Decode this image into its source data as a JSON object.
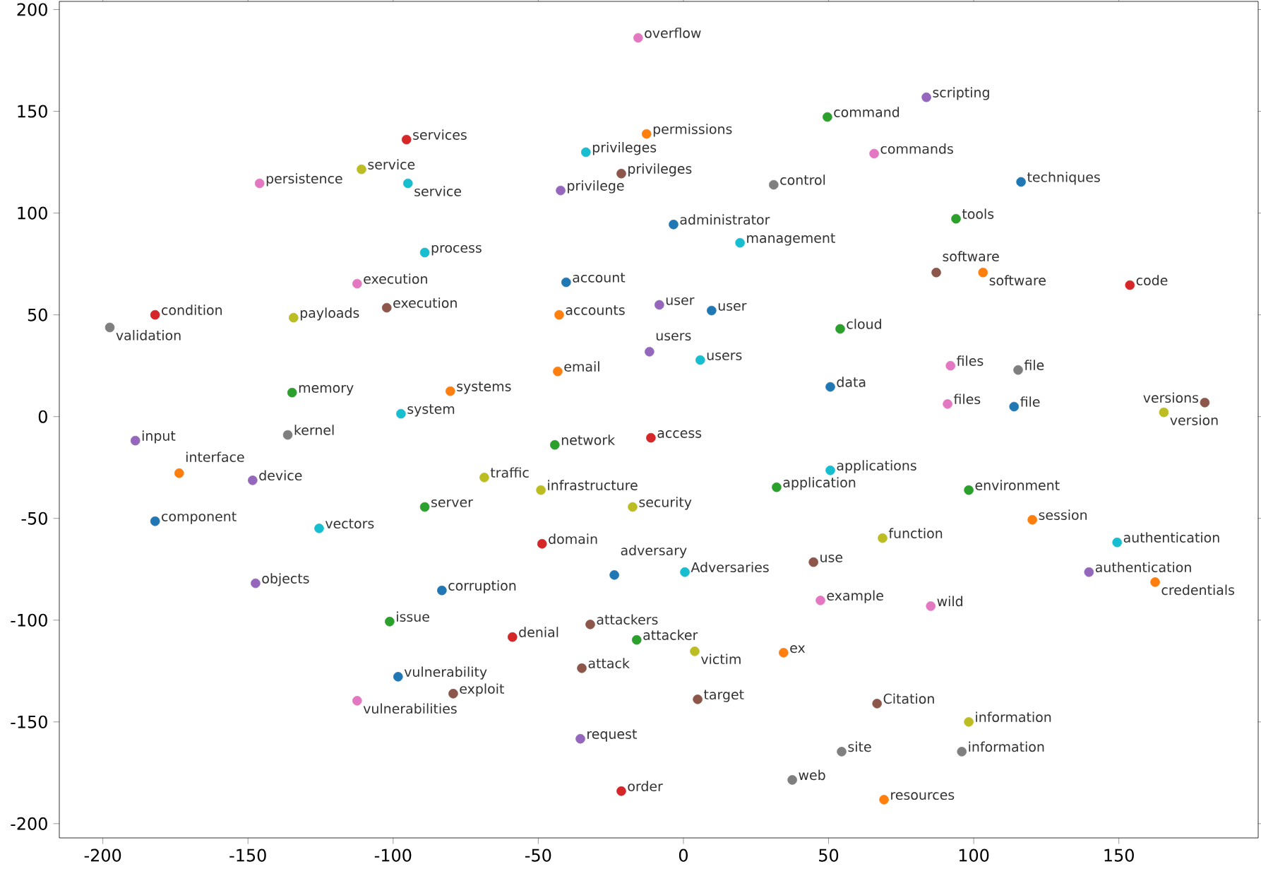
{
  "chart_data": {
    "type": "scatter",
    "marker": "circle",
    "grid": false,
    "xlim": [
      -215,
      198
    ],
    "ylim": [
      -207,
      204
    ],
    "xticks": [
      -200,
      -150,
      -100,
      -50,
      0,
      50,
      100,
      150
    ],
    "yticks": [
      -200,
      -150,
      -100,
      -50,
      0,
      50,
      100,
      150,
      200
    ],
    "x": [
      -15.6,
      49.6,
      83.7,
      -12.7,
      -95.4,
      -33.6,
      -21.4,
      65.7,
      -110.9,
      -146,
      -94.9,
      -42.3,
      31.1,
      116.3,
      -3.4,
      93.9,
      19.5,
      -89.1,
      87.1,
      103.2,
      -40.4,
      -112.4,
      153.8,
      -102.2,
      -8.3,
      9.7,
      -182.0,
      -42.8,
      -134.3,
      -197.6,
      54.0,
      -11.7,
      5.8,
      92.0,
      115.3,
      -43.3,
      -134.8,
      -80.3,
      50.6,
      91.0,
      113.9,
      179.6,
      165.5,
      -97.3,
      -136.3,
      -188.8,
      -11.2,
      -44.3,
      -173.7,
      50.6,
      -148.4,
      -68.6,
      32.1,
      -49.1,
      98.3,
      -89.1,
      -17.5,
      -182.0,
      120.2,
      -125.5,
      -48.7,
      68.6,
      149.4,
      44.8,
      -23.8,
      0.5,
      139.7,
      162.5,
      -147.4,
      -83.2,
      47.2,
      85.2,
      -101.2,
      -32.1,
      -58.9,
      -16.1,
      3.9,
      34.5,
      -35.0,
      -98.3,
      -79.3,
      -112.4,
      4.9,
      66.7,
      98.3,
      -35.5,
      54.5,
      95.9,
      37.5,
      -21.4,
      69.1
    ],
    "values": [
      186.1,
      147.2,
      156.9,
      138.9,
      136.1,
      129.9,
      119.4,
      129.2,
      121.5,
      114.6,
      114.6,
      111.1,
      113.9,
      115.3,
      94.4,
      97.2,
      85.4,
      80.6,
      70.8,
      70.8,
      66.0,
      65.3,
      64.6,
      53.5,
      54.9,
      52.1,
      50.0,
      50.0,
      48.6,
      43.8,
      43.1,
      31.9,
      27.8,
      25.0,
      22.9,
      22.2,
      11.8,
      12.5,
      14.6,
      6.2,
      4.9,
      6.9,
      2.1,
      1.4,
      -9.0,
      -11.8,
      -10.4,
      -13.9,
      -27.8,
      -26.4,
      -31.3,
      -29.9,
      -34.7,
      -36.1,
      -36.1,
      -44.4,
      -44.4,
      -51.4,
      -50.7,
      -54.9,
      -62.5,
      -59.7,
      -61.8,
      -71.5,
      -77.8,
      -76.4,
      -76.4,
      -81.3,
      -81.9,
      -85.4,
      -90.3,
      -93.1,
      -100.7,
      -102.1,
      -108.3,
      -109.7,
      -115.3,
      -116.0,
      -123.6,
      -127.8,
      -136.1,
      -139.6,
      -138.9,
      -141.0,
      -150.0,
      -158.3,
      -164.6,
      -164.6,
      -178.5,
      -184.0,
      -188.2
    ],
    "colors": [
      "#e377c2",
      "#2ca02c",
      "#9467bd",
      "#ff7f0e",
      "#d62728",
      "#17becf",
      "#8c564b",
      "#e377c2",
      "#bcbd22",
      "#e377c2",
      "#17becf",
      "#9467bd",
      "#7f7f7f",
      "#1f77b4",
      "#1f77b4",
      "#2ca02c",
      "#17becf",
      "#17becf",
      "#8c564b",
      "#ff7f0e",
      "#1f77b4",
      "#e377c2",
      "#d62728",
      "#8c564b",
      "#9467bd",
      "#1f77b4",
      "#d62728",
      "#ff7f0e",
      "#bcbd22",
      "#7f7f7f",
      "#2ca02c",
      "#9467bd",
      "#17becf",
      "#e377c2",
      "#7f7f7f",
      "#ff7f0e",
      "#2ca02c",
      "#ff7f0e",
      "#1f77b4",
      "#e377c2",
      "#1f77b4",
      "#8c564b",
      "#bcbd22",
      "#17becf",
      "#7f7f7f",
      "#9467bd",
      "#d62728",
      "#2ca02c",
      "#ff7f0e",
      "#17becf",
      "#9467bd",
      "#bcbd22",
      "#2ca02c",
      "#bcbd22",
      "#2ca02c",
      "#2ca02c",
      "#bcbd22",
      "#1f77b4",
      "#ff7f0e",
      "#17becf",
      "#d62728",
      "#bcbd22",
      "#17becf",
      "#8c564b",
      "#1f77b4",
      "#17becf",
      "#9467bd",
      "#ff7f0e",
      "#9467bd",
      "#1f77b4",
      "#e377c2",
      "#e377c2",
      "#2ca02c",
      "#8c564b",
      "#d62728",
      "#2ca02c",
      "#bcbd22",
      "#ff7f0e",
      "#8c564b",
      "#1f77b4",
      "#8c564b",
      "#e377c2",
      "#8c564b",
      "#8c564b",
      "#bcbd22",
      "#9467bd",
      "#7f7f7f",
      "#7f7f7f",
      "#7f7f7f",
      "#d62728",
      "#ff7f0e"
    ],
    "annotations": [
      {
        "text": "overflow",
        "x": -15.6,
        "y": 186.1
      },
      {
        "text": "command",
        "x": 49.6,
        "y": 147.2
      },
      {
        "text": "scripting",
        "x": 83.7,
        "y": 156.9
      },
      {
        "text": "permissions",
        "x": -12.7,
        "y": 138.9
      },
      {
        "text": "services",
        "x": -95.4,
        "y": 136.1
      },
      {
        "text": "privileges",
        "x": -33.6,
        "y": 129.9
      },
      {
        "text": "privileges",
        "x": -21.4,
        "y": 119.4
      },
      {
        "text": "commands",
        "x": 65.7,
        "y": 129.2
      },
      {
        "text": "service",
        "x": -110.9,
        "y": 121.5
      },
      {
        "text": "persistence",
        "x": -146,
        "y": 114.6
      },
      {
        "text": "service",
        "x": -94.9,
        "y": 114.6
      },
      {
        "text": "privilege",
        "x": -42.3,
        "y": 111.1
      },
      {
        "text": "control",
        "x": 31.1,
        "y": 113.9
      },
      {
        "text": "techniques",
        "x": 116.3,
        "y": 115.3
      },
      {
        "text": "administrator",
        "x": -3.4,
        "y": 94.4
      },
      {
        "text": "tools",
        "x": 93.9,
        "y": 97.2
      },
      {
        "text": "management",
        "x": 19.5,
        "y": 85.4
      },
      {
        "text": "process",
        "x": -89.1,
        "y": 80.6
      },
      {
        "text": "software",
        "x": 87.1,
        "y": 70.8
      },
      {
        "text": "software",
        "x": 103.2,
        "y": 70.8
      },
      {
        "text": "account",
        "x": -40.4,
        "y": 66.0
      },
      {
        "text": "execution",
        "x": -112.4,
        "y": 65.3
      },
      {
        "text": "code",
        "x": 153.8,
        "y": 64.6
      },
      {
        "text": "execution",
        "x": -102.2,
        "y": 53.5
      },
      {
        "text": "user",
        "x": -8.3,
        "y": 54.9
      },
      {
        "text": "user",
        "x": 9.7,
        "y": 52.1
      },
      {
        "text": "condition",
        "x": -182.0,
        "y": 50.0
      },
      {
        "text": "accounts",
        "x": -42.8,
        "y": 50.0
      },
      {
        "text": "payloads",
        "x": -134.3,
        "y": 48.6
      },
      {
        "text": "validation",
        "x": -197.6,
        "y": 43.8
      },
      {
        "text": "cloud",
        "x": 54.0,
        "y": 43.1
      },
      {
        "text": "users",
        "x": -11.7,
        "y": 31.9
      },
      {
        "text": "users",
        "x": 5.8,
        "y": 27.8
      },
      {
        "text": "files",
        "x": 92.0,
        "y": 25.0
      },
      {
        "text": "file",
        "x": 115.3,
        "y": 22.9
      },
      {
        "text": "email",
        "x": -43.3,
        "y": 22.2
      },
      {
        "text": "memory",
        "x": -134.8,
        "y": 11.8
      },
      {
        "text": "systems",
        "x": -80.3,
        "y": 12.5
      },
      {
        "text": "data",
        "x": 50.6,
        "y": 14.6
      },
      {
        "text": "files",
        "x": 91.0,
        "y": 6.2
      },
      {
        "text": "file",
        "x": 113.9,
        "y": 4.9
      },
      {
        "text": "versions",
        "x": 179.6,
        "y": 6.9
      },
      {
        "text": "version",
        "x": 165.5,
        "y": 2.1
      },
      {
        "text": "system",
        "x": -97.3,
        "y": 1.4
      },
      {
        "text": "kernel",
        "x": -136.3,
        "y": -9.0
      },
      {
        "text": "input",
        "x": -188.8,
        "y": -11.8
      },
      {
        "text": "access",
        "x": -11.2,
        "y": -10.4
      },
      {
        "text": "network",
        "x": -44.3,
        "y": -13.9
      },
      {
        "text": "interface",
        "x": -173.7,
        "y": -27.8
      },
      {
        "text": "applications",
        "x": 50.6,
        "y": -26.4
      },
      {
        "text": "device",
        "x": -148.4,
        "y": -31.3
      },
      {
        "text": "traffic",
        "x": -68.6,
        "y": -29.9
      },
      {
        "text": "application",
        "x": 32.1,
        "y": -34.7
      },
      {
        "text": "infrastructure",
        "x": -49.1,
        "y": -36.1
      },
      {
        "text": "environment",
        "x": 98.3,
        "y": -36.1
      },
      {
        "text": "server",
        "x": -89.1,
        "y": -44.4
      },
      {
        "text": "security",
        "x": -17.5,
        "y": -44.4
      },
      {
        "text": "component",
        "x": -182.0,
        "y": -51.4
      },
      {
        "text": "session",
        "x": 120.2,
        "y": -50.7
      },
      {
        "text": "vectors",
        "x": -125.5,
        "y": -54.9
      },
      {
        "text": "domain",
        "x": -48.7,
        "y": -62.5
      },
      {
        "text": "function",
        "x": 68.6,
        "y": -59.7
      },
      {
        "text": "authentication",
        "x": 149.4,
        "y": -61.8
      },
      {
        "text": "use",
        "x": 44.8,
        "y": -71.5
      },
      {
        "text": "adversary",
        "x": -23.8,
        "y": -77.8
      },
      {
        "text": "Adversaries",
        "x": 0.5,
        "y": -76.4
      },
      {
        "text": "authentication",
        "x": 139.7,
        "y": -76.4
      },
      {
        "text": "credentials",
        "x": 162.5,
        "y": -81.3
      },
      {
        "text": "objects",
        "x": -147.4,
        "y": -81.9
      },
      {
        "text": "corruption",
        "x": -83.2,
        "y": -85.4
      },
      {
        "text": "example",
        "x": 47.2,
        "y": -90.3
      },
      {
        "text": "wild",
        "x": 85.2,
        "y": -93.1
      },
      {
        "text": "issue",
        "x": -101.2,
        "y": -100.7
      },
      {
        "text": "attackers",
        "x": -32.1,
        "y": -102.1
      },
      {
        "text": "denial",
        "x": -58.9,
        "y": -108.3
      },
      {
        "text": "attacker",
        "x": -16.1,
        "y": -109.7
      },
      {
        "text": "victim",
        "x": 3.9,
        "y": -115.3
      },
      {
        "text": "ex",
        "x": 34.5,
        "y": -116.0
      },
      {
        "text": "attack",
        "x": -35.0,
        "y": -123.6
      },
      {
        "text": "vulnerability",
        "x": -98.3,
        "y": -127.8
      },
      {
        "text": "exploit",
        "x": -79.3,
        "y": -136.1
      },
      {
        "text": "vulnerabilities",
        "x": -112.4,
        "y": -139.6
      },
      {
        "text": "target",
        "x": 4.9,
        "y": -138.9
      },
      {
        "text": "Citation",
        "x": 66.7,
        "y": -141.0
      },
      {
        "text": "information",
        "x": 98.3,
        "y": -150.0
      },
      {
        "text": "request",
        "x": -35.5,
        "y": -158.3
      },
      {
        "text": "site",
        "x": 54.5,
        "y": -164.6
      },
      {
        "text": "information",
        "x": 95.9,
        "y": -164.6
      },
      {
        "text": "web",
        "x": 37.5,
        "y": -178.5
      },
      {
        "text": "order",
        "x": -21.4,
        "y": -184.0
      },
      {
        "text": "resources",
        "x": 69.1,
        "y": -188.2
      }
    ]
  }
}
